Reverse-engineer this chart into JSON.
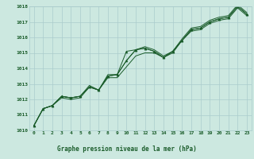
{
  "title": "Graphe pression niveau de la mer (hPa)",
  "x_labels": [
    "0",
    "1",
    "2",
    "3",
    "4",
    "5",
    "6",
    "7",
    "8",
    "9",
    "10",
    "11",
    "12",
    "13",
    "14",
    "15",
    "16",
    "17",
    "18",
    "19",
    "20",
    "21",
    "22",
    "23"
  ],
  "hours": [
    0,
    1,
    2,
    3,
    4,
    5,
    6,
    7,
    8,
    9,
    10,
    11,
    12,
    13,
    14,
    15,
    16,
    17,
    18,
    19,
    20,
    21,
    22,
    23
  ],
  "line1": [
    1010.3,
    1011.4,
    1011.6,
    1012.2,
    1012.1,
    1012.2,
    1012.8,
    1012.6,
    1013.5,
    1013.6,
    1014.5,
    1015.2,
    1015.3,
    1015.1,
    1014.7,
    1015.1,
    1015.8,
    1016.5,
    1016.6,
    1017.0,
    1017.2,
    1017.3,
    1018.0,
    1017.5
  ],
  "line2": [
    1010.3,
    1011.4,
    1011.6,
    1012.2,
    1012.1,
    1012.2,
    1012.8,
    1012.6,
    1013.5,
    1013.6,
    1015.1,
    1015.2,
    1015.3,
    1015.1,
    1014.7,
    1015.1,
    1015.8,
    1016.5,
    1016.6,
    1017.0,
    1017.2,
    1017.3,
    1018.0,
    1017.5
  ],
  "line3": [
    1010.3,
    1011.4,
    1011.6,
    1012.1,
    1012.0,
    1012.1,
    1012.8,
    1012.6,
    1013.4,
    1013.4,
    1014.1,
    1014.8,
    1015.0,
    1015.0,
    1014.7,
    1015.0,
    1015.8,
    1016.4,
    1016.5,
    1016.9,
    1017.1,
    1017.2,
    1017.9,
    1017.4
  ],
  "line4": [
    1010.3,
    1011.4,
    1011.6,
    1012.2,
    1012.1,
    1012.2,
    1012.9,
    1012.6,
    1013.6,
    1013.6,
    1014.5,
    1015.2,
    1015.4,
    1015.2,
    1014.8,
    1015.1,
    1015.9,
    1016.6,
    1016.7,
    1017.1,
    1017.3,
    1017.4,
    1018.1,
    1017.6
  ],
  "ylim": [
    1010,
    1018
  ],
  "yticks": [
    1010,
    1011,
    1012,
    1013,
    1014,
    1015,
    1016,
    1017,
    1018
  ],
  "bg_color": "#cce8e0",
  "line_color": "#1a5c2a",
  "grid_color": "#aacccc",
  "label_color": "#1a5c2a",
  "title_color": "#1a5c2a"
}
